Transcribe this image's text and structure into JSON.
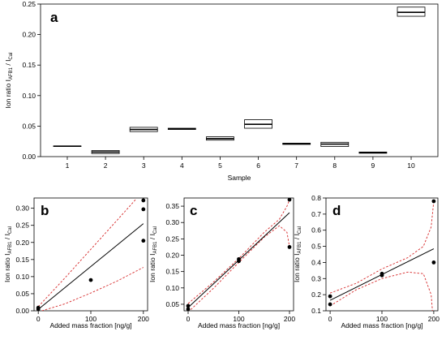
{
  "chart_data": [
    {
      "panel": "a",
      "type": "box",
      "xlabel": "Sample",
      "ylabel": "Ion ratio I",
      "ylabel_sub": "AFB1",
      "ylabel_mid": " / I",
      "ylabel_sub2": "Cal",
      "categories": [
        "1",
        "2",
        "3",
        "4",
        "5",
        "6",
        "7",
        "8",
        "9",
        "10"
      ],
      "boxes": [
        {
          "q1": 0.0165,
          "median": 0.017,
          "q3": 0.0175
        },
        {
          "q1": 0.005,
          "median": 0.0075,
          "q3": 0.01
        },
        {
          "q1": 0.041,
          "median": 0.0445,
          "q3": 0.048
        },
        {
          "q1": 0.0445,
          "median": 0.0455,
          "q3": 0.0465
        },
        {
          "q1": 0.027,
          "median": 0.0295,
          "q3": 0.0325
        },
        {
          "q1": 0.0465,
          "median": 0.053,
          "q3": 0.0605
        },
        {
          "q1": 0.02,
          "median": 0.021,
          "q3": 0.022
        },
        {
          "q1": 0.0165,
          "median": 0.0205,
          "q3": 0.0235
        },
        {
          "q1": 0.0055,
          "median": 0.0065,
          "q3": 0.0075
        },
        {
          "q1": 0.23,
          "median": 0.2365,
          "q3": 0.245
        }
      ],
      "ylim": [
        0,
        0.25
      ],
      "yticks": [
        "0.00",
        "0.05",
        "0.10",
        "0.15",
        "0.20",
        "0.25"
      ]
    },
    {
      "panel": "b",
      "type": "scatter",
      "xlabel": "Added mass fraction [ng/g]",
      "ylabel": "Ion ratio I",
      "ylabel_sub": "AFB1",
      "ylabel_mid": " / I",
      "ylabel_sub2": "Cal",
      "points": [
        [
          0,
          0.005
        ],
        [
          0,
          0.009
        ],
        [
          100,
          0.09
        ],
        [
          200,
          0.205
        ],
        [
          200,
          0.297
        ],
        [
          200,
          0.323
        ]
      ],
      "fit": [
        [
          0,
          0.004
        ],
        [
          200,
          0.255
        ]
      ],
      "ci_upper": [
        [
          0,
          0.012
        ],
        [
          50,
          0.095
        ],
        [
          100,
          0.18
        ],
        [
          150,
          0.265
        ],
        [
          185,
          0.325
        ]
      ],
      "ci_lower": [
        [
          0,
          -0.003
        ],
        [
          50,
          0.02
        ],
        [
          100,
          0.052
        ],
        [
          150,
          0.087
        ],
        [
          200,
          0.127
        ]
      ],
      "xlim": [
        0,
        210
      ],
      "ylim": [
        0,
        0.33
      ],
      "xticks": [
        "0",
        "100",
        "200"
      ],
      "yticks": [
        "0.00",
        "0.05",
        "0.10",
        "0.15",
        "0.20",
        "0.25",
        "0.30"
      ]
    },
    {
      "panel": "c",
      "type": "scatter",
      "xlabel": "Added mass fraction [ng/g]",
      "ylabel": "Ion ratio I",
      "ylabel_sub": "AFB1",
      "ylabel_mid": " / I",
      "ylabel_sub2": "Cal",
      "points": [
        [
          0,
          0.035
        ],
        [
          0,
          0.045
        ],
        [
          100,
          0.182
        ],
        [
          100,
          0.188
        ],
        [
          200,
          0.225
        ],
        [
          200,
          0.37
        ]
      ],
      "fit": [
        [
          0,
          0.04
        ],
        [
          200,
          0.33
        ]
      ],
      "ci_upper": [
        [
          0,
          0.052
        ],
        [
          50,
          0.118
        ],
        [
          100,
          0.19
        ],
        [
          150,
          0.27
        ],
        [
          180,
          0.31
        ],
        [
          195,
          0.35
        ],
        [
          200,
          0.37
        ]
      ],
      "ci_lower": [
        [
          0,
          0.026
        ],
        [
          50,
          0.099
        ],
        [
          100,
          0.178
        ],
        [
          150,
          0.255
        ],
        [
          180,
          0.29
        ],
        [
          195,
          0.27
        ],
        [
          200,
          0.225
        ]
      ],
      "xlim": [
        0,
        210
      ],
      "ylim": [
        0.03,
        0.375
      ],
      "xticks": [
        "0",
        "100",
        "200"
      ],
      "yticks": [
        "0.05",
        "0.10",
        "0.15",
        "0.20",
        "0.25",
        "0.30",
        "0.35"
      ]
    },
    {
      "panel": "d",
      "type": "scatter",
      "xlabel": "Added mass fraction [ng/g]",
      "ylabel": "Ion ratio I",
      "ylabel_sub": "AFB1",
      "ylabel_mid": " / I",
      "ylabel_sub2": "Cal",
      "points": [
        [
          0,
          0.19
        ],
        [
          0,
          0.14
        ],
        [
          100,
          0.32
        ],
        [
          100,
          0.33
        ],
        [
          200,
          0.4
        ],
        [
          200,
          0.78
        ]
      ],
      "fit": [
        [
          0,
          0.165
        ],
        [
          200,
          0.485
        ]
      ],
      "ci_upper": [
        [
          0,
          0.21
        ],
        [
          50,
          0.27
        ],
        [
          100,
          0.36
        ],
        [
          150,
          0.43
        ],
        [
          180,
          0.5
        ],
        [
          195,
          0.62
        ],
        [
          200,
          0.78
        ]
      ],
      "ci_lower": [
        [
          0,
          0.13
        ],
        [
          50,
          0.23
        ],
        [
          100,
          0.3
        ],
        [
          150,
          0.34
        ],
        [
          180,
          0.33
        ],
        [
          195,
          0.2
        ],
        [
          200,
          0.0
        ]
      ],
      "xlim": [
        0,
        210
      ],
      "ylim": [
        0.1,
        0.8
      ],
      "xticks": [
        "0",
        "100",
        "200"
      ],
      "yticks": [
        "0.1",
        "0.2",
        "0.3",
        "0.4",
        "0.5",
        "0.6",
        "0.7",
        "0.8"
      ]
    }
  ]
}
